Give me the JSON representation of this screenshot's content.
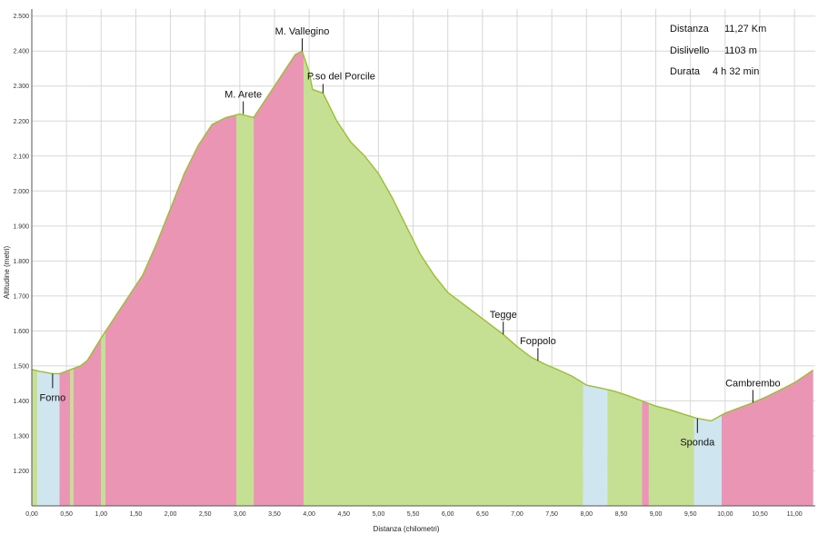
{
  "chart_data": {
    "type": "area",
    "xlabel": "Distanza (chilometri)",
    "ylabel": "Altitudine (metri)",
    "xlim": [
      0,
      11.3
    ],
    "ylim": [
      1100,
      2520
    ],
    "x_ticks": [
      "0,00",
      "0,50",
      "1,00",
      "1,50",
      "2,00",
      "2,50",
      "3,00",
      "3,50",
      "4,00",
      "4,50",
      "5,00",
      "5,50",
      "6,00",
      "6,50",
      "7,00",
      "7,50",
      "8,00",
      "8,50",
      "9,00",
      "9,50",
      "10,00",
      "10,50",
      "11,00"
    ],
    "y_ticks": [
      "1.200",
      "1.300",
      "1.400",
      "1.500",
      "1.600",
      "1.700",
      "1.800",
      "1.900",
      "2.000",
      "2.100",
      "2.200",
      "2.300",
      "2.400",
      "2.500"
    ],
    "grid": true,
    "info": {
      "distance_label": "Distanza",
      "distance_value": "11,27 Km",
      "elevation_label": "Dislivello",
      "elevation_value": "1103 m",
      "duration_label": "Durata",
      "duration_value": "4 h   32 min"
    },
    "profile": {
      "x": [
        0.0,
        0.1,
        0.3,
        0.4,
        0.5,
        0.7,
        0.8,
        1.0,
        1.2,
        1.4,
        1.6,
        1.8,
        2.0,
        2.2,
        2.4,
        2.6,
        2.8,
        3.0,
        3.1,
        3.2,
        3.3,
        3.5,
        3.7,
        3.8,
        3.9,
        4.0,
        4.05,
        4.2,
        4.4,
        4.6,
        4.8,
        5.0,
        5.2,
        5.4,
        5.6,
        5.8,
        6.0,
        6.2,
        6.4,
        6.6,
        6.8,
        7.0,
        7.2,
        7.4,
        7.6,
        7.8,
        8.0,
        8.2,
        8.4,
        8.6,
        8.8,
        9.0,
        9.2,
        9.4,
        9.6,
        9.8,
        10.0,
        10.2,
        10.4,
        10.6,
        10.8,
        11.0,
        11.27
      ],
      "y": [
        1490,
        1485,
        1478,
        1478,
        1485,
        1500,
        1515,
        1580,
        1640,
        1700,
        1760,
        1850,
        1950,
        2050,
        2130,
        2190,
        2210,
        2220,
        2215,
        2210,
        2240,
        2300,
        2360,
        2390,
        2400,
        2340,
        2290,
        2280,
        2200,
        2140,
        2100,
        2050,
        1980,
        1900,
        1820,
        1760,
        1710,
        1680,
        1650,
        1620,
        1590,
        1555,
        1525,
        1505,
        1488,
        1470,
        1445,
        1437,
        1428,
        1415,
        1400,
        1385,
        1375,
        1362,
        1350,
        1343,
        1365,
        1380,
        1395,
        1412,
        1432,
        1452,
        1488
      ]
    },
    "segments": [
      {
        "from": 0.0,
        "to": 0.08,
        "color": "#c5df93"
      },
      {
        "from": 0.08,
        "to": 0.4,
        "color": "#cfe5ef"
      },
      {
        "from": 0.4,
        "to": 0.55,
        "color": "#eb95b5"
      },
      {
        "from": 0.55,
        "to": 0.6,
        "color": "#c5df93"
      },
      {
        "from": 0.6,
        "to": 1.0,
        "color": "#eb95b5"
      },
      {
        "from": 1.0,
        "to": 1.06,
        "color": "#c5df93"
      },
      {
        "from": 1.06,
        "to": 2.95,
        "color": "#eb95b5"
      },
      {
        "from": 2.95,
        "to": 3.2,
        "color": "#c5df93"
      },
      {
        "from": 3.2,
        "to": 3.92,
        "color": "#eb95b5"
      },
      {
        "from": 3.92,
        "to": 7.95,
        "color": "#c5df93"
      },
      {
        "from": 7.95,
        "to": 8.3,
        "color": "#cfe5ef"
      },
      {
        "from": 8.3,
        "to": 8.8,
        "color": "#c5df93"
      },
      {
        "from": 8.8,
        "to": 8.9,
        "color": "#eb95b5"
      },
      {
        "from": 8.9,
        "to": 9.55,
        "color": "#c5df93"
      },
      {
        "from": 9.55,
        "to": 9.95,
        "color": "#cfe5ef"
      },
      {
        "from": 9.95,
        "to": 11.27,
        "color": "#eb95b5"
      }
    ],
    "line_color": "#9abf32",
    "annotations": [
      {
        "label": "Forno",
        "x": 0.3,
        "y": 1478,
        "pos": "below"
      },
      {
        "label": "M. Arete",
        "x": 3.05,
        "y": 2220,
        "pos": "above"
      },
      {
        "label": "M. Vallegino",
        "x": 3.9,
        "y": 2400,
        "pos": "above"
      },
      {
        "label": "P.so del Porcile",
        "x": 4.2,
        "y": 2280,
        "pos": "above-right"
      },
      {
        "label": "Tegge",
        "x": 6.8,
        "y": 1590,
        "pos": "above"
      },
      {
        "label": "Foppolo",
        "x": 7.3,
        "y": 1515,
        "pos": "above"
      },
      {
        "label": "Sponda",
        "x": 9.6,
        "y": 1350,
        "pos": "below"
      },
      {
        "label": "Cambrembo",
        "x": 10.4,
        "y": 1395,
        "pos": "above"
      }
    ]
  }
}
